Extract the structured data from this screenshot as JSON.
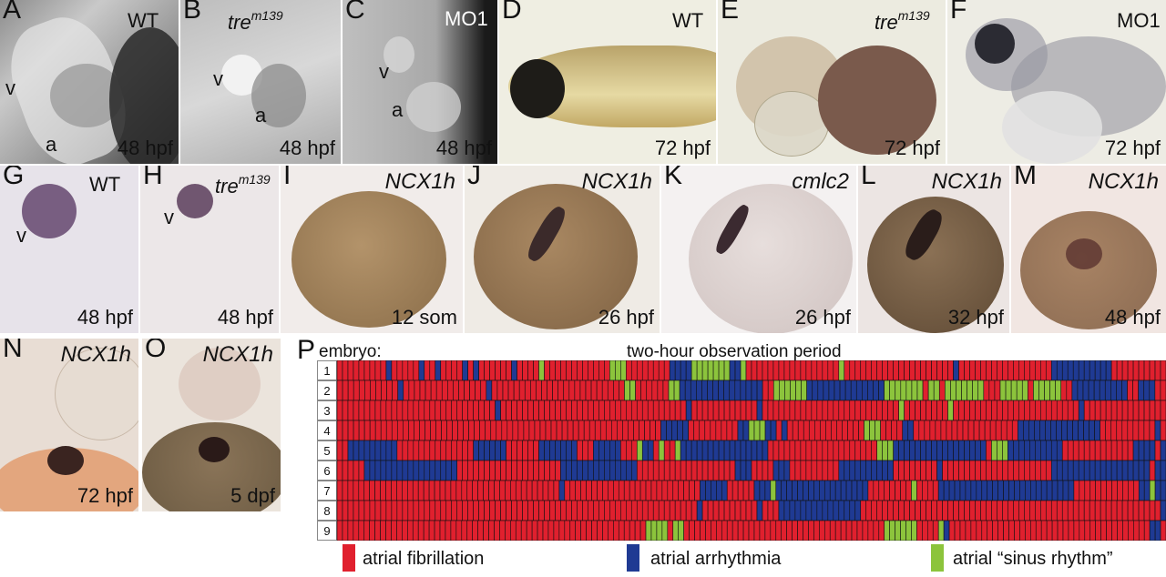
{
  "panels": {
    "A": {
      "letter": "A",
      "tag": "WT",
      "v": "v",
      "a": "a",
      "stage": "48 hpf"
    },
    "B": {
      "letter": "B",
      "tag_main": "tre",
      "tag_sup": "m139",
      "v": "v",
      "a": "a",
      "stage": "48 hpf"
    },
    "C": {
      "letter": "C",
      "tag": "MO1",
      "v": "v",
      "a": "a",
      "stage": "48 hpf"
    },
    "D": {
      "letter": "D",
      "tag": "WT",
      "stage": "72 hpf"
    },
    "E": {
      "letter": "E",
      "tag_main": "tre",
      "tag_sup": "m139",
      "stage": "72 hpf"
    },
    "F": {
      "letter": "F",
      "tag": "MO1",
      "stage": "72 hpf"
    },
    "G": {
      "letter": "G",
      "tag": "WT",
      "v": "v",
      "stage": "48 hpf"
    },
    "H": {
      "letter": "H",
      "tag_main": "tre",
      "tag_sup": "m139",
      "v": "v",
      "stage": "48 hpf"
    },
    "I": {
      "letter": "I",
      "gene": "NCX1h",
      "stage": "12 som"
    },
    "J": {
      "letter": "J",
      "gene": "NCX1h",
      "stage": "26 hpf"
    },
    "K": {
      "letter": "K",
      "gene": "cmlc2",
      "stage": "26 hpf"
    },
    "L": {
      "letter": "L",
      "gene": "NCX1h",
      "stage": "32 hpf"
    },
    "M": {
      "letter": "M",
      "gene": "NCX1h",
      "stage": "48 hpf"
    },
    "N": {
      "letter": "N",
      "gene": "NCX1h",
      "stage": "72 hpf"
    },
    "O": {
      "letter": "O",
      "gene": "NCX1h",
      "stage": "5 dpf"
    }
  },
  "panel_p": {
    "letter": "P",
    "row_header": "embryo:",
    "title": "two-hour observation period",
    "rows": [
      "1",
      "2",
      "3",
      "4",
      "5",
      "6",
      "7",
      "8",
      "9"
    ],
    "colors": {
      "atrial_fibrillation": "#e0202e",
      "atrial_arrhythmia": "#1f3a93",
      "sinus_rhythm": "#8cc43c"
    },
    "states": [
      "FFFFFFFFFAFFFFFAFFAFFFFAFAFFFFFFAFFFFSFFFFFFFFFFFFSSSFFFFFFFFAAAASSSSSSSAASFFFFFFFFFFFFFFFFFSFFFFFFFFFFFFFFFFFFFFAFFFFFFFFFFFFFFFFFAAAAAAAAAAAFFFFFFFFFF",
      "FFFFFFFFFFFAFFFFFFFFFFFFFFFAFFFFFFFFFFFFFFFFFFFFFFFFSSFFFFFFSSAAAAAAAAAAAAAAAFFSSSSSSAAAAAAAAAAAAAASSSSSSSFSSFSSSSSSSFFFSSSSSFSSSSSFFAAAAAAAAAAFFAAAFF",
      "FFFFFFFFFFFFFFFFFFFFFFFFFFFFFAFFFFFFFFFFFFFFFFFFFFFFFFFFFFFFFFFFAFFFFFFFFFFFFAFFFFFFFFFFFFFFFFFFFFFFFFFSFFFFFFFFSFFFFFFFFFFFFFFFFFFFFFFFAFFFFFFFFFFFFFFF",
      "FFFFFFFFFFFFFFFFFFFFFFFFFFFFFFFFFFFFFFFFFFFFFFFFFFFFFFFFFFFAAAAAFFFFFFFFFAASSSAAFAFFFFFFFFFFFFFFSSSFFFFAAFFFFFFFFFFFFFFFFFFFAAAAAAAAAAAAAAAFFFFFFFFFFAF",
      "FFAAAAAAAAAFFFFFFFFFFFFFFAAAAAAFFFFFFAAAAAAAFFFAAAAAFFFSAAFSFFSAAAAAAAAAAAAAAAAFFFFFFFFFFFFFFFFFFFFSSSAAAAAAAAAAAAAAAAAFSSSAAAAAAAAAAFFFFFFFFFFFFFAAAAFA",
      "FFFFFAAAAAAAAAAAAAAAAAFFFFFFFFFFFFFFFFFFFAAAAAAAAAAAAAAFFFFFFFFFFFFFFFFFFAAAFFFFAAAFFFFFFFFFAAAAAAAAAAFFFFFFFFAFFFFFFFFFFFFFFFFFFFFAAAAAAAAAAAAAAAAAAFAA",
      "FFFFFFFFFFFFFFFFFFFFFFFFFFFFFFFFFFFFFFFFFAFFFFFFFFFFFFFFFFFFFFFFFFFAAAAAFFFFFAAASAAAAAAAAAAAAAAAAAFFFFFFFFSFFFFAAAAAAAAAAAAAAAAAAAAAAAAAFFFFFFFFFFFFAASAA",
      "FFFFFFFFFFFFFFFFFFFFFFFFFFFFFFFFFFFFFFFFFFFFFFFFFFFFFFFFFFFFFFFFFFAFFFFFFFFFFAFFFAAAAAAAAAAAAAAAFFFFFFFFFFFFFFFFFFFFFFFFFFFFFFFFFFFFFFFFFFFFFFFFFFFFFFFA",
      "FFFFFFFFFFFFFFFFFFFFFFFFFFFFFFFFFFFFFFFFFFFFFFFFFFFFFFFFFSSSSFSSFFFFFFFFFFFFFFFFFFFFFFFFFFFFFFFFFFFFFSSSSSSFFFFSAFFFFFFFFFFFFFFFFFFFFFFFFFFFFFFFFFFFFFAAF"
    ],
    "legend": [
      {
        "label": "atrial fibrillation",
        "color": "#e0202e"
      },
      {
        "label": "atrial arrhythmia",
        "color": "#1f3a93"
      },
      {
        "label": "atrial “sinus rhythm”",
        "color": "#8cc43c"
      }
    ]
  }
}
